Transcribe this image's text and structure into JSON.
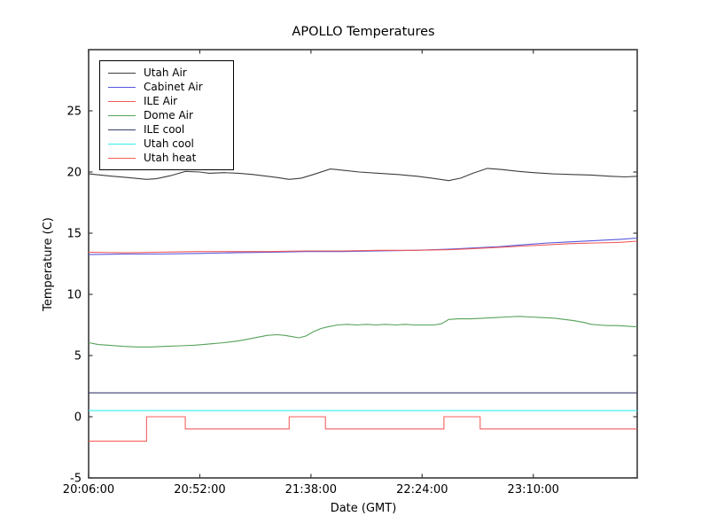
{
  "figure": {
    "title": "APOLLO Temperatures"
  },
  "chart_data": {
    "type": "line",
    "title": "APOLLO Temperatures",
    "xlabel": "Date (GMT)",
    "ylabel": "Temperature (C)",
    "x_unit": "minutes after 20:06:00 GMT",
    "xlim": [
      0,
      227
    ],
    "ylim": [
      -5,
      30
    ],
    "grid": false,
    "legend_position": "upper left",
    "frame_color": "#3a3a3a",
    "x_ticks": [
      {
        "pos": 0,
        "label": "20:06:00"
      },
      {
        "pos": 46,
        "label": "20:52:00"
      },
      {
        "pos": 92,
        "label": "21:38:00"
      },
      {
        "pos": 138,
        "label": "22:24:00"
      },
      {
        "pos": 184,
        "label": "23:10:00"
      }
    ],
    "y_ticks": [
      {
        "pos": -5,
        "label": "-5"
      },
      {
        "pos": 0,
        "label": "0"
      },
      {
        "pos": 5,
        "label": "5"
      },
      {
        "pos": 10,
        "label": "10"
      },
      {
        "pos": 15,
        "label": "15"
      },
      {
        "pos": 20,
        "label": "20"
      },
      {
        "pos": 25,
        "label": "25"
      }
    ],
    "series": [
      {
        "name": "Utah Air",
        "color": "#3d3d3d",
        "points": [
          [
            0,
            19.85
          ],
          [
            5,
            19.75
          ],
          [
            10,
            19.65
          ],
          [
            16,
            19.55
          ],
          [
            24,
            19.4
          ],
          [
            28,
            19.45
          ],
          [
            34,
            19.7
          ],
          [
            40,
            20.05
          ],
          [
            46,
            20.0
          ],
          [
            50,
            19.9
          ],
          [
            56,
            19.95
          ],
          [
            62,
            19.9
          ],
          [
            68,
            19.8
          ],
          [
            74,
            19.65
          ],
          [
            78,
            19.55
          ],
          [
            83,
            19.4
          ],
          [
            88,
            19.5
          ],
          [
            93,
            19.8
          ],
          [
            100,
            20.25
          ],
          [
            105,
            20.15
          ],
          [
            112,
            20.0
          ],
          [
            120,
            19.9
          ],
          [
            128,
            19.8
          ],
          [
            136,
            19.65
          ],
          [
            142,
            19.5
          ],
          [
            149,
            19.3
          ],
          [
            154,
            19.5
          ],
          [
            159,
            19.9
          ],
          [
            165,
            20.3
          ],
          [
            171,
            20.2
          ],
          [
            178,
            20.05
          ],
          [
            184,
            19.95
          ],
          [
            192,
            19.85
          ],
          [
            200,
            19.8
          ],
          [
            208,
            19.75
          ],
          [
            216,
            19.65
          ],
          [
            222,
            19.6
          ],
          [
            227,
            19.65
          ]
        ]
      },
      {
        "name": "Cabinet Air",
        "color": "#5656de",
        "points": [
          [
            0,
            13.25
          ],
          [
            15,
            13.3
          ],
          [
            30,
            13.3
          ],
          [
            45,
            13.35
          ],
          [
            60,
            13.4
          ],
          [
            75,
            13.45
          ],
          [
            90,
            13.5
          ],
          [
            105,
            13.5
          ],
          [
            120,
            13.55
          ],
          [
            135,
            13.6
          ],
          [
            150,
            13.7
          ],
          [
            160,
            13.8
          ],
          [
            170,
            13.9
          ],
          [
            180,
            14.05
          ],
          [
            190,
            14.2
          ],
          [
            200,
            14.3
          ],
          [
            210,
            14.4
          ],
          [
            220,
            14.5
          ],
          [
            227,
            14.6
          ]
        ]
      },
      {
        "name": "ILE Air",
        "color": "#ef5a5a",
        "points": [
          [
            0,
            13.45
          ],
          [
            15,
            13.4
          ],
          [
            30,
            13.45
          ],
          [
            45,
            13.5
          ],
          [
            60,
            13.5
          ],
          [
            75,
            13.5
          ],
          [
            90,
            13.55
          ],
          [
            105,
            13.55
          ],
          [
            120,
            13.6
          ],
          [
            135,
            13.6
          ],
          [
            150,
            13.65
          ],
          [
            160,
            13.75
          ],
          [
            170,
            13.85
          ],
          [
            180,
            13.95
          ],
          [
            190,
            14.05
          ],
          [
            200,
            14.15
          ],
          [
            210,
            14.2
          ],
          [
            220,
            14.25
          ],
          [
            227,
            14.35
          ]
        ]
      },
      {
        "name": "Dome Air",
        "color": "#55a257",
        "points": [
          [
            0,
            6.05
          ],
          [
            4,
            5.9
          ],
          [
            8,
            5.85
          ],
          [
            14,
            5.75
          ],
          [
            20,
            5.7
          ],
          [
            26,
            5.7
          ],
          [
            32,
            5.75
          ],
          [
            38,
            5.8
          ],
          [
            44,
            5.85
          ],
          [
            50,
            5.95
          ],
          [
            56,
            6.05
          ],
          [
            62,
            6.2
          ],
          [
            66,
            6.35
          ],
          [
            70,
            6.5
          ],
          [
            74,
            6.65
          ],
          [
            78,
            6.7
          ],
          [
            81,
            6.65
          ],
          [
            84,
            6.55
          ],
          [
            87,
            6.45
          ],
          [
            90,
            6.6
          ],
          [
            93,
            6.95
          ],
          [
            96,
            7.2
          ],
          [
            99,
            7.35
          ],
          [
            103,
            7.5
          ],
          [
            107,
            7.55
          ],
          [
            111,
            7.5
          ],
          [
            115,
            7.55
          ],
          [
            119,
            7.5
          ],
          [
            123,
            7.55
          ],
          [
            127,
            7.5
          ],
          [
            131,
            7.55
          ],
          [
            135,
            7.5
          ],
          [
            139,
            7.5
          ],
          [
            143,
            7.5
          ],
          [
            146,
            7.6
          ],
          [
            149,
            7.95
          ],
          [
            153,
            8.0
          ],
          [
            158,
            8.0
          ],
          [
            163,
            8.05
          ],
          [
            168,
            8.1
          ],
          [
            173,
            8.15
          ],
          [
            178,
            8.2
          ],
          [
            183,
            8.15
          ],
          [
            188,
            8.1
          ],
          [
            193,
            8.05
          ],
          [
            197,
            7.95
          ],
          [
            201,
            7.85
          ],
          [
            205,
            7.7
          ],
          [
            208,
            7.55
          ],
          [
            211,
            7.5
          ],
          [
            215,
            7.45
          ],
          [
            219,
            7.45
          ],
          [
            223,
            7.4
          ],
          [
            227,
            7.35
          ]
        ]
      },
      {
        "name": "ILE cool",
        "color": "#3b3b6e",
        "points": [
          [
            0,
            1.95
          ],
          [
            227,
            1.95
          ]
        ]
      },
      {
        "name": "Utah cool",
        "color": "#35eded",
        "points": [
          [
            0,
            0.5
          ],
          [
            227,
            0.5
          ]
        ]
      },
      {
        "name": "Utah heat",
        "color": "#f4605c",
        "points": [
          [
            0,
            -2
          ],
          [
            24,
            -2
          ],
          [
            24,
            0
          ],
          [
            40,
            0
          ],
          [
            40,
            -1
          ],
          [
            83,
            -1
          ],
          [
            83,
            0
          ],
          [
            98,
            0
          ],
          [
            98,
            -1
          ],
          [
            147,
            -1
          ],
          [
            147,
            0
          ],
          [
            162,
            0
          ],
          [
            162,
            -1
          ],
          [
            227,
            -1
          ]
        ]
      }
    ]
  }
}
